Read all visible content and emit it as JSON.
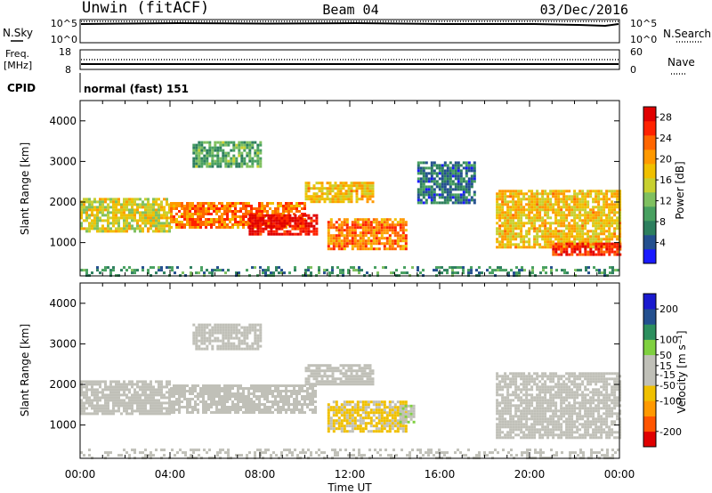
{
  "header": {
    "site": "Unwin (fitACF)",
    "beam": "Beam 04",
    "date": "03/Dec/2016"
  },
  "strips": {
    "nsky_label": "N.Sky",
    "nsky_ticks": [
      "10^5",
      "10^0"
    ],
    "nsearch_label": "N.Search",
    "nsearch_ticks": [
      "10^5",
      "10^0"
    ],
    "freq_label": "Freq.",
    "freq_unit": "[MHz]",
    "freq_ticks": [
      "18",
      "8"
    ],
    "nave_label": "Nave",
    "nave_ticks": [
      "60",
      "0"
    ],
    "cpid_label": "CPID",
    "cpid_value": "normal (fast) 151"
  },
  "colors": {
    "power_scale": [
      "#1a1aff",
      "#24508f",
      "#2d7f5e",
      "#48a060",
      "#7fc060",
      "#c8d030",
      "#f0c000",
      "#ff9900",
      "#ff6600",
      "#ff2200",
      "#e00000"
    ],
    "velocity_scale": [
      "#e00000",
      "#ff5500",
      "#ff9900",
      "#f0c000",
      "#c0c0b8",
      "#c0c0b8",
      "#7fd040",
      "#2d8f5e",
      "#24508f",
      "#1a1acf"
    ]
  },
  "chart_data": [
    {
      "type": "heatmap",
      "title": "Power",
      "ylabel": "Slant Range [km]",
      "xlabel": "Time UT",
      "x_ticks": [
        "00:00",
        "04:00",
        "08:00",
        "12:00",
        "16:00",
        "20:00",
        "00:00"
      ],
      "x_range_hours": [
        0,
        24
      ],
      "y_ticks": [
        1000,
        2000,
        3000,
        4000
      ],
      "y_range_km": [
        180,
        4500
      ],
      "colorbar": {
        "label": "Power [dB]",
        "ticks": [
          4,
          8,
          12,
          16,
          20,
          24,
          28
        ],
        "range": [
          0,
          30
        ]
      },
      "echo_regions": [
        {
          "hours": [
            0,
            24
          ],
          "range_km": [
            180,
            420
          ],
          "power_db": 8
        },
        {
          "hours": [
            0,
            4
          ],
          "range_km": [
            1300,
            2100
          ],
          "power_db": 16
        },
        {
          "hours": [
            4,
            10
          ],
          "range_km": [
            1400,
            2000
          ],
          "power_db": 22
        },
        {
          "hours": [
            7.5,
            10.5
          ],
          "range_km": [
            1200,
            1700
          ],
          "power_db": 28
        },
        {
          "hours": [
            5,
            8
          ],
          "range_km": [
            2900,
            3500
          ],
          "power_db": 10
        },
        {
          "hours": [
            10,
            13
          ],
          "range_km": [
            2000,
            2500
          ],
          "power_db": 18
        },
        {
          "hours": [
            11,
            14.5
          ],
          "range_km": [
            850,
            1600
          ],
          "power_db": 22
        },
        {
          "hours": [
            15,
            17.5
          ],
          "range_km": [
            2000,
            3000
          ],
          "power_db": 6
        },
        {
          "hours": [
            18.5,
            24
          ],
          "range_km": [
            900,
            2300
          ],
          "power_db": 18
        },
        {
          "hours": [
            21,
            24
          ],
          "range_km": [
            700,
            1000
          ],
          "power_db": 26
        }
      ]
    },
    {
      "type": "heatmap",
      "title": "Velocity",
      "ylabel": "Slant Range [km]",
      "xlabel": "Time UT",
      "x_ticks": [
        "00:00",
        "04:00",
        "08:00",
        "12:00",
        "16:00",
        "20:00",
        "00:00"
      ],
      "x_range_hours": [
        0,
        24
      ],
      "y_ticks": [
        1000,
        2000,
        3000,
        4000
      ],
      "y_range_km": [
        180,
        4500
      ],
      "colorbar": {
        "label": "Velocity [m s⁻¹]",
        "ticks": [
          200,
          100,
          50,
          15,
          -15,
          -50,
          -100,
          -200
        ],
        "range": [
          -250,
          250
        ]
      },
      "echo_regions": [
        {
          "hours": [
            0,
            24
          ],
          "range_km": [
            180,
            420
          ],
          "velocity": 0
        },
        {
          "hours": [
            0,
            4
          ],
          "range_km": [
            1300,
            2100
          ],
          "velocity": 0
        },
        {
          "hours": [
            4,
            10.5
          ],
          "range_km": [
            1300,
            2000
          ],
          "velocity": 0
        },
        {
          "hours": [
            5,
            8
          ],
          "range_km": [
            2900,
            3500
          ],
          "velocity": 0
        },
        {
          "hours": [
            10,
            13
          ],
          "range_km": [
            2000,
            2500
          ],
          "velocity": 0
        },
        {
          "hours": [
            11,
            14.5
          ],
          "range_km": [
            850,
            1600
          ],
          "velocity": -60
        },
        {
          "hours": [
            14.2,
            14.8
          ],
          "range_km": [
            1100,
            1500
          ],
          "velocity": 40
        },
        {
          "hours": [
            18.5,
            24
          ],
          "range_km": [
            700,
            2300
          ],
          "velocity": 0
        }
      ]
    }
  ]
}
